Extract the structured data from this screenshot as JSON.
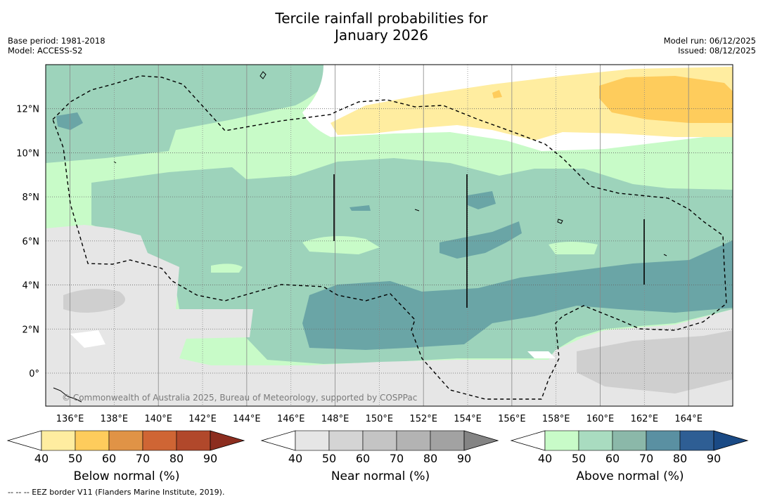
{
  "title_line1": "Tercile rainfall probabilities for",
  "title_line2": "January 2026",
  "base_period": "Base period: 1981-2018",
  "model": "Model: ACCESS-S2",
  "model_run": "Model run: 06/12/2025",
  "issued": "Issued: 08/12/2025",
  "copyright": "© Commonwealth of Australia 2025, Bureau of Meteorology, supported by COSPPac",
  "footnote": "--  --  -- EEZ border V11 (Flanders Marine Institute, 2019).",
  "map_data": {
    "lon_labels": [
      "136°E",
      "138°E",
      "140°E",
      "142°E",
      "144°E",
      "146°E",
      "148°E",
      "150°E",
      "152°E",
      "154°E",
      "156°E",
      "158°E",
      "160°E",
      "162°E",
      "164°E"
    ],
    "lon_values": [
      136,
      138,
      140,
      142,
      144,
      146,
      148,
      150,
      152,
      154,
      156,
      158,
      160,
      162,
      164
    ],
    "lat_labels": [
      "12°N",
      "10°N",
      "8°N",
      "6°N",
      "4°N",
      "2°N",
      "0°"
    ],
    "lat_values": [
      12,
      10,
      8,
      6,
      4,
      2,
      0
    ],
    "lon_range": [
      134.9,
      166.0
    ],
    "lat_range": [
      -1.5,
      14.0
    ]
  },
  "colorbars": [
    {
      "label": "Below normal (%)",
      "ticks": [
        "40",
        "50",
        "60",
        "70",
        "80",
        "90"
      ],
      "colors": [
        "#ffffff",
        "#ffeda0",
        "#fecc5c",
        "#e09346",
        "#cf6534",
        "#b1482b",
        "#8c2d1f"
      ]
    },
    {
      "label": "Near normal (%)",
      "ticks": [
        "40",
        "50",
        "60",
        "70",
        "80",
        "90"
      ],
      "colors": [
        "#ffffff",
        "#e6e6e6",
        "#d4d4d4",
        "#c4c4c4",
        "#b3b3b3",
        "#a2a2a2",
        "#848484"
      ]
    },
    {
      "label": "Above normal (%)",
      "ticks": [
        "40",
        "50",
        "60",
        "70",
        "80",
        "90"
      ],
      "colors": [
        "#ffffff",
        "#c8fbc8",
        "#a9dcc0",
        "#8bb8a9",
        "#5a90a2",
        "#2e5e94",
        "#1a4a85"
      ]
    }
  ]
}
